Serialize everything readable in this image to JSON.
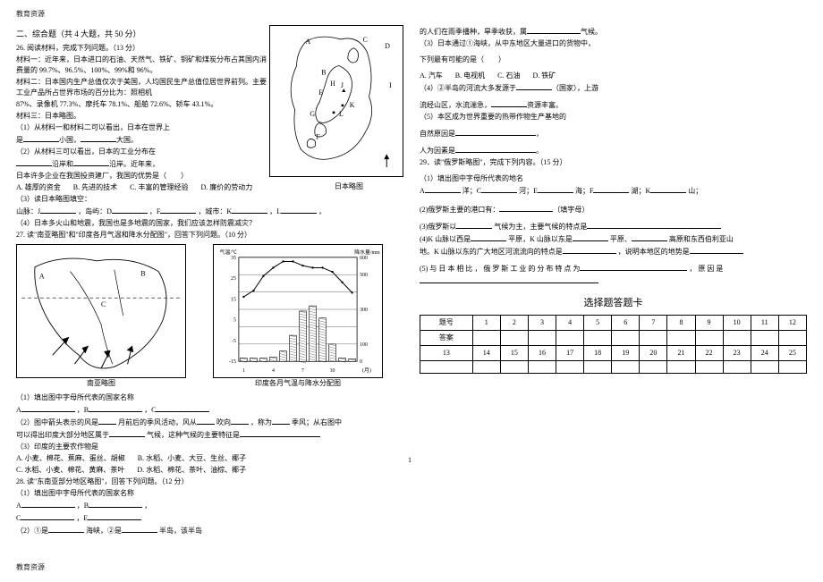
{
  "header": "教育资源",
  "footer": "教育资源",
  "left": {
    "sec_title": "二、综合题（共 4 大题，共 50 分）",
    "q26_intro": "26. 阅读材料，完成下列问题。（13 分）",
    "m1": "材料一：近年来，日本进口的石油、天然气、铁矿、铜矿和煤炭分布占其国内消费量的 99.7%、96.5%、100%、99%和 96%。",
    "m2a": "材料二：日本国内生产总值仅次于美国，人均国民生产总值位居世界前列。主要工业产品所占世界市场的百分比为：照相机",
    "m2b": "87%、录像机 77.3%、摩托车 78.1%、船舶 72.6%、轿车 43.1%。",
    "m3": "材料三：日本略图。",
    "q26_1a": "（1）从材料一和材料二可以看出，日本在世界上",
    "q26_1b": "是",
    "q26_1c": "小国，",
    "q26_1d": "大国。",
    "q26_2": "（2）从材料三可以看出，日本的工业分布在",
    "q26_2b": "沿岸和",
    "q26_2c": "沿岸。近年来，",
    "q26_adv": "日本许多企业在我国投资建厂，我国的优势是（　　）",
    "optA": "A. 雄厚的资金",
    "optB": "B. 先进的技术",
    "optC": "C. 丰富的管理经验",
    "optD": "D. 廉价的劳动力",
    "q26_3": "（3）读日本略图填空：",
    "q26_3a": "山脉：J",
    "q26_3b": "，岛屿：D",
    "q26_3c": "，F",
    "q26_3d": "，城市：K",
    "q26_3e": "，L",
    "q26_3f": "，",
    "q26_4": "（4）日本多火山和地震，我国也是多地震的国家，我们应该怎样防震减灾？",
    "q27": "27. 读\"南亚略图\"和\"印度各月气温和降水分配图\"，回答下列问题。（10 分）",
    "cap_sa": "南亚略图",
    "cap_chart": "印度各月气温与降水分配图",
    "q27_1": "（1）填出图中字母所代表的国家名称",
    "q27_1a": "A",
    "q27_1b": "，B",
    "q27_1c": "，C",
    "q27_2a": "（2）图中箭头表示的风是",
    "q27_2b": "月前后的季风活动，风从",
    "q27_2c": "吹向",
    "q27_2d": "，称为",
    "q27_2e": "季风；从右图中",
    "q27_3a": "可以得出印度大部分地区属于",
    "q27_3b": "气候，这种气候的主要特征是",
    "q27_4": "（3）印度的主要农作物是",
    "opt2A": "A. 小麦、棉花、蕉麻、蛋丝、胡椒",
    "opt2B": "B. 水稻、小麦、大豆、生丝、椰子",
    "opt2C": "C. 水稻、小麦、棉花、黄麻、茶叶",
    "opt2D": "D. 水稻、棉花、茶叶、油棕、椰子",
    "q28": "28. 读\"东南亚部分地区略图\"，回答下列问题。（12 分）",
    "q28_1": "（1）填出图中字母所代表的国家名称",
    "q28_1a": "A",
    "q28_1b": "，B",
    "q28_1c": "，",
    "q28_1d": "C",
    "q28_1e": "，E",
    "q28_2a": "（2）①是",
    "q28_2b": "海峡，②是",
    "q28_2c": "半岛，该半岛",
    "japan_cap": "日本略图",
    "japan_labels": {
      "A": "A",
      "B": "B",
      "C": "C",
      "D": "D",
      "E": "E",
      "F": "F",
      "G": "G",
      "H": "H",
      "I": "I",
      "J": "J",
      "K": "K",
      "L": "L"
    },
    "chart": {
      "temp": [
        16,
        19,
        26,
        30,
        33,
        33,
        31,
        30,
        30,
        28,
        23,
        18
      ],
      "rain": [
        20,
        20,
        20,
        25,
        60,
        150,
        290,
        320,
        250,
        100,
        20,
        15
      ],
      "xlabels": [
        "1",
        "4",
        "7",
        "10",
        "(月)"
      ],
      "yleft_label": "气温/℃",
      "yright_label": "降水量/mm",
      "yleft_ticks": [
        "-15",
        "-5",
        "5",
        "15",
        "25",
        "35"
      ],
      "yright_ticks": [
        "0",
        "100",
        "300",
        "500",
        "600"
      ]
    }
  },
  "right": {
    "r1a": "的人们在雨季播种，旱季收获，属",
    "r1b": "气候。",
    "r2": "（3）日本通过①海峡，从中东地区大量进口的货物中，",
    "r3": "下列最有可能的是（　　）",
    "roptA": "A. 汽车",
    "roptB": "B. 电视机",
    "roptC": "C. 石油",
    "roptD": "D. 铁矿",
    "r4a": "（4）②半岛的河流大多发源于",
    "r4b": "（国家），上游",
    "r5a": "流经山区，水流湍急，",
    "r5b": "资源丰富。",
    "r6": "（5）本区成为世界重要的热带作物生产基地的",
    "r7": "自然原因是",
    "r8": "人为因素是",
    "q29": "29．读\"俄罗斯略图\"，完成下列内容。（15 分）",
    "q29_1": "（1）填出图中字母所代表的地名",
    "q29_1a": "A",
    "q29_1b": "洋；C",
    "q29_1c": "河；E",
    "q29_1d": "海；F",
    "q29_1e": "湖；K",
    "q29_1f": "山；",
    "q29_2a": "(2)俄罗斯主要的港口有：",
    "q29_2b": "（填字母）",
    "q29_3a": "(3)俄罗斯以",
    "q29_3b": "气候为主，主要气候的特点是",
    "q29_4a": "(4)K 山脉以西是",
    "q29_4b": "平原，K 山脉以东是",
    "q29_4c": "平原、",
    "q29_4d": "高原和东西伯利亚山",
    "q29_4e": "地。K 山脉以东的广大地区河流流向的特点是",
    "q29_4f": "，说明本地区的地势是",
    "q29_5a": "(5) 与 日 本 相 比 ， 俄 罗 斯 工 业 的 分 布 特 点 为",
    "q29_5b": "， 原 因 是",
    "ans_title": "选择题答题卡",
    "row_th": "题号",
    "row_ans": "答案",
    "nums1": [
      "1",
      "2",
      "3",
      "4",
      "5",
      "6",
      "7",
      "8",
      "9",
      "10",
      "11",
      "12"
    ],
    "nums2": [
      "13",
      "14",
      "15",
      "16",
      "17",
      "18",
      "19",
      "20",
      "21",
      "22",
      "23",
      "24",
      "25"
    ]
  },
  "page_num": "1"
}
